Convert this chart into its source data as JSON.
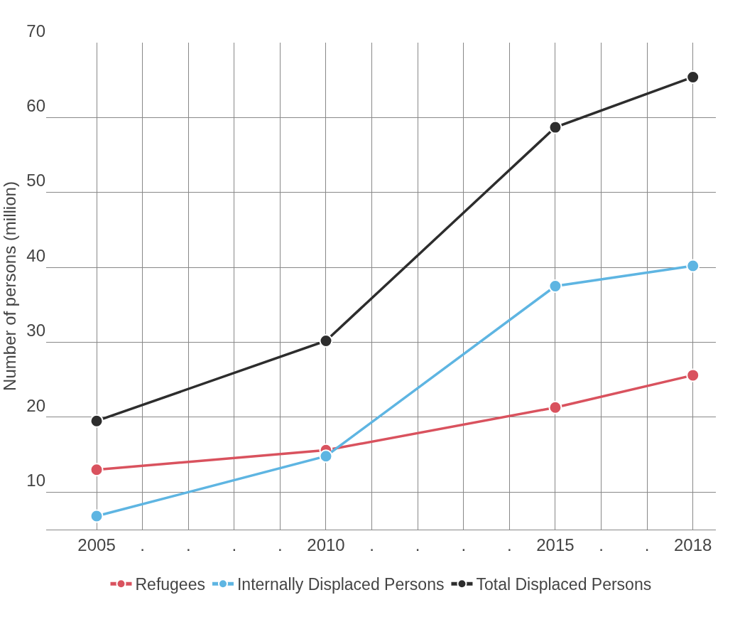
{
  "chart_data": {
    "type": "line",
    "ylabel": "Number of persons (million)",
    "x": [
      2005,
      2010,
      2015,
      2018
    ],
    "series": [
      {
        "name": "Refugees",
        "color": "#d9525e",
        "values": [
          13.0,
          15.6,
          21.3,
          25.6
        ]
      },
      {
        "name": "Internally Displaced Persons",
        "color": "#5eb5e2",
        "values": [
          6.8,
          14.8,
          37.5,
          40.2
        ]
      },
      {
        "name": "Total Displaced Persons",
        "color": "#2d2d2d",
        "values": [
          19.5,
          30.2,
          58.7,
          65.4
        ]
      }
    ],
    "xlim": [
      2003.9,
      2018.5
    ],
    "xticks": [
      2005,
      {
        "value": 2006,
        "label": "."
      },
      {
        "value": 2007,
        "label": "."
      },
      {
        "value": 2008,
        "label": "."
      },
      {
        "value": 2009,
        "label": "."
      },
      2010,
      {
        "value": 2011,
        "label": "."
      },
      {
        "value": 2012,
        "label": "."
      },
      {
        "value": 2013,
        "label": "."
      },
      {
        "value": 2014,
        "label": "."
      },
      2015,
      {
        "value": 2016,
        "label": "."
      },
      {
        "value": 2017,
        "label": "."
      },
      2018
    ],
    "ylim": [
      5,
      70
    ],
    "yticks": [
      10,
      20,
      30,
      40,
      50,
      60,
      70
    ],
    "grid": true,
    "legend": "bottom",
    "marker": "circle",
    "line_style": "solid"
  }
}
